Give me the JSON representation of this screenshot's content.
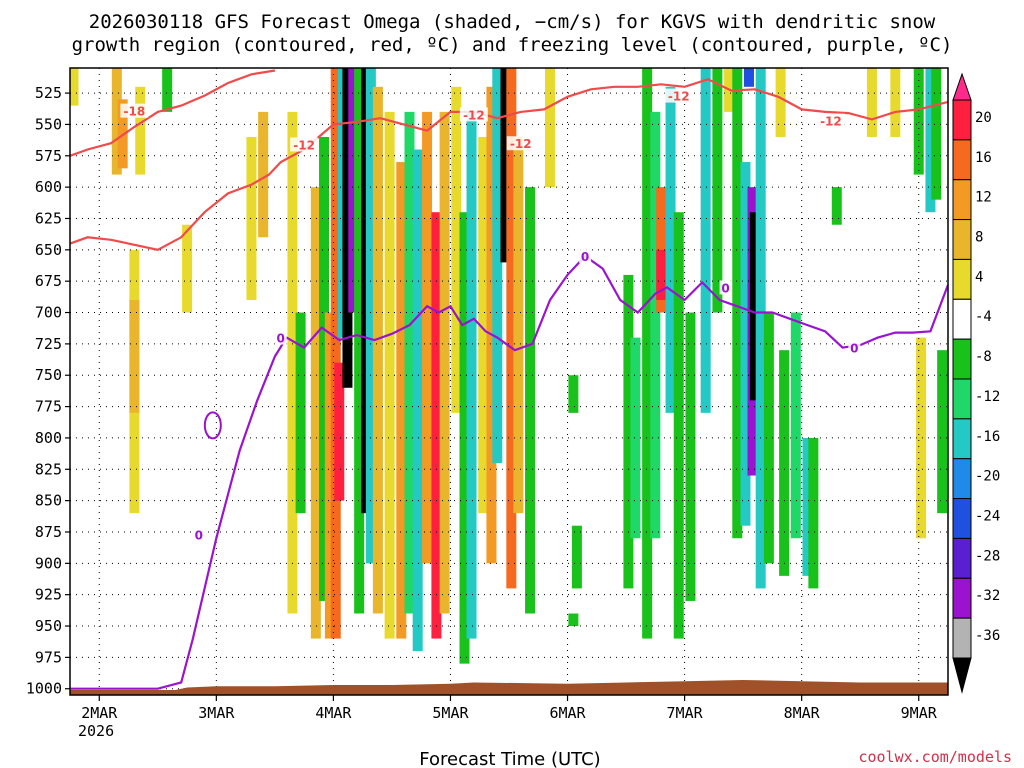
{
  "chart_data": {
    "type": "heatmap",
    "title": [
      "2026030118 GFS Forecast Omega (shaded, −cm/s) for KGVS with dendritic snow",
      "growth region (contoured, red, ºC) and freezing level (contoured, purple, ºC)"
    ],
    "xlabel": "Forecast Time (UTC)",
    "credit": "coolwx.com/models",
    "x_ticks": [
      {
        "label": "2MAR",
        "day": 2
      },
      {
        "label": "3MAR",
        "day": 3
      },
      {
        "label": "4MAR",
        "day": 4
      },
      {
        "label": "5MAR",
        "day": 5
      },
      {
        "label": "6MAR",
        "day": 6
      },
      {
        "label": "7MAR",
        "day": 7
      },
      {
        "label": "8MAR",
        "day": 8
      },
      {
        "label": "9MAR",
        "day": 9
      }
    ],
    "x_year_label": "2026",
    "xlim": [
      1.75,
      9.25
    ],
    "y_ticks": [
      525,
      550,
      575,
      600,
      625,
      650,
      675,
      700,
      725,
      750,
      775,
      800,
      825,
      850,
      875,
      900,
      925,
      950,
      975,
      1000
    ],
    "ylim": [
      505,
      1005
    ],
    "yunits": "hPa",
    "colorbar": {
      "labels": [
        "20",
        "16",
        "12",
        "8",
        "4",
        "-4",
        "-8",
        "-12",
        "-16",
        "-20",
        "-24",
        "-28",
        "-32",
        "-36"
      ],
      "colors": [
        "#ff1f3f",
        "#f56a1e",
        "#f39a25",
        "#e8b52d",
        "#e8d92d",
        "#ffffff",
        "#19c21b",
        "#1fd867",
        "#24c9c4",
        "#1f8ae8",
        "#2050e0",
        "#5a1fd0",
        "#9a14d0",
        "#b3b3b3",
        "#000000"
      ]
    },
    "omega_cells": [
      {
        "x": 1.78,
        "p0": 505,
        "p1": 535,
        "c": "#e8d92d"
      },
      {
        "x": 2.15,
        "p0": 505,
        "p1": 590,
        "c": "#e8b52d"
      },
      {
        "x": 2.2,
        "p0": 530,
        "p1": 585,
        "c": "#f39a25"
      },
      {
        "x": 2.35,
        "p0": 520,
        "p1": 590,
        "c": "#e8d92d"
      },
      {
        "x": 2.58,
        "p0": 505,
        "p1": 540,
        "c": "#19c21b"
      },
      {
        "x": 2.3,
        "p0": 650,
        "p1": 860,
        "c": "#e8d92d"
      },
      {
        "x": 2.3,
        "p0": 690,
        "p1": 780,
        "c": "#e8b52d"
      },
      {
        "x": 2.75,
        "p0": 630,
        "p1": 700,
        "c": "#e8d92d"
      },
      {
        "x": 3.3,
        "p0": 560,
        "p1": 690,
        "c": "#e8d92d"
      },
      {
        "x": 3.4,
        "p0": 540,
        "p1": 640,
        "c": "#e8b52d"
      },
      {
        "x": 3.65,
        "p0": 540,
        "p1": 940,
        "c": "#e8d92d"
      },
      {
        "x": 3.72,
        "p0": 700,
        "p1": 860,
        "c": "#19c21b"
      },
      {
        "x": 3.85,
        "p0": 600,
        "p1": 960,
        "c": "#e8b52d"
      },
      {
        "x": 3.92,
        "p0": 560,
        "p1": 930,
        "c": "#19c21b"
      },
      {
        "x": 3.97,
        "p0": 700,
        "p1": 960,
        "c": "#f39a25"
      },
      {
        "x": 4.02,
        "p0": 505,
        "p1": 960,
        "c": "#f56a1e"
      },
      {
        "x": 4.05,
        "p0": 740,
        "p1": 850,
        "c": "#ff1f3f"
      },
      {
        "x": 4.08,
        "p0": 505,
        "p1": 720,
        "c": "#24c9c4"
      },
      {
        "x": 4.12,
        "p0": 505,
        "p1": 760,
        "c": "#000000"
      },
      {
        "x": 4.17,
        "p0": 505,
        "p1": 700,
        "c": "#9a14d0"
      },
      {
        "x": 4.22,
        "p0": 505,
        "p1": 940,
        "c": "#19c21b"
      },
      {
        "x": 4.28,
        "p0": 505,
        "p1": 860,
        "c": "#000000"
      },
      {
        "x": 4.32,
        "p0": 505,
        "p1": 900,
        "c": "#24c9c4"
      },
      {
        "x": 4.38,
        "p0": 520,
        "p1": 940,
        "c": "#e8b52d"
      },
      {
        "x": 4.48,
        "p0": 540,
        "p1": 960,
        "c": "#e8d92d"
      },
      {
        "x": 4.58,
        "p0": 580,
        "p1": 960,
        "c": "#f39a25"
      },
      {
        "x": 4.65,
        "p0": 540,
        "p1": 940,
        "c": "#1fd867"
      },
      {
        "x": 4.72,
        "p0": 570,
        "p1": 970,
        "c": "#24c9c4"
      },
      {
        "x": 4.8,
        "p0": 540,
        "p1": 900,
        "c": "#f39a25"
      },
      {
        "x": 4.88,
        "p0": 620,
        "p1": 960,
        "c": "#ff1f3f"
      },
      {
        "x": 4.95,
        "p0": 540,
        "p1": 940,
        "c": "#e8b52d"
      },
      {
        "x": 5.05,
        "p0": 520,
        "p1": 780,
        "c": "#e8d92d"
      },
      {
        "x": 5.12,
        "p0": 620,
        "p1": 980,
        "c": "#19c21b"
      },
      {
        "x": 5.18,
        "p0": 540,
        "p1": 960,
        "c": "#24c9c4"
      },
      {
        "x": 5.28,
        "p0": 560,
        "p1": 860,
        "c": "#e8d92d"
      },
      {
        "x": 5.35,
        "p0": 520,
        "p1": 900,
        "c": "#f39a25"
      },
      {
        "x": 5.4,
        "p0": 505,
        "p1": 820,
        "c": "#24c9c4"
      },
      {
        "x": 5.47,
        "p0": 505,
        "p1": 660,
        "c": "#000000"
      },
      {
        "x": 5.52,
        "p0": 505,
        "p1": 920,
        "c": "#f56a1e"
      },
      {
        "x": 5.58,
        "p0": 560,
        "p1": 860,
        "c": "#e8b52d"
      },
      {
        "x": 5.68,
        "p0": 600,
        "p1": 940,
        "c": "#19c21b"
      },
      {
        "x": 5.85,
        "p0": 505,
        "p1": 600,
        "c": "#e8d92d"
      },
      {
        "x": 6.05,
        "p0": 750,
        "p1": 780,
        "c": "#19c21b"
      },
      {
        "x": 6.08,
        "p0": 870,
        "p1": 920,
        "c": "#19c21b"
      },
      {
        "x": 6.05,
        "p0": 940,
        "p1": 950,
        "c": "#19c21b"
      },
      {
        "x": 6.52,
        "p0": 670,
        "p1": 920,
        "c": "#19c21b"
      },
      {
        "x": 6.58,
        "p0": 720,
        "p1": 880,
        "c": "#1fd867"
      },
      {
        "x": 6.68,
        "p0": 505,
        "p1": 960,
        "c": "#19c21b"
      },
      {
        "x": 6.75,
        "p0": 540,
        "p1": 880,
        "c": "#1fd867"
      },
      {
        "x": 6.8,
        "p0": 600,
        "p1": 700,
        "c": "#f56a1e"
      },
      {
        "x": 6.8,
        "p0": 650,
        "p1": 690,
        "c": "#ff1f3f"
      },
      {
        "x": 6.88,
        "p0": 520,
        "p1": 780,
        "c": "#24c9c4"
      },
      {
        "x": 6.95,
        "p0": 620,
        "p1": 960,
        "c": "#19c21b"
      },
      {
        "x": 7.05,
        "p0": 700,
        "p1": 930,
        "c": "#19c21b"
      },
      {
        "x": 7.18,
        "p0": 505,
        "p1": 780,
        "c": "#24c9c4"
      },
      {
        "x": 7.28,
        "p0": 505,
        "p1": 700,
        "c": "#19c21b"
      },
      {
        "x": 7.38,
        "p0": 505,
        "p1": 540,
        "c": "#e8d92d"
      },
      {
        "x": 7.45,
        "p0": 505,
        "p1": 880,
        "c": "#19c21b"
      },
      {
        "x": 7.52,
        "p0": 580,
        "p1": 870,
        "c": "#24c9c4"
      },
      {
        "x": 7.55,
        "p0": 505,
        "p1": 520,
        "c": "#2050e0"
      },
      {
        "x": 7.58,
        "p0": 600,
        "p1": 830,
        "c": "#9a14d0"
      },
      {
        "x": 7.6,
        "p0": 620,
        "p1": 770,
        "c": "#000000"
      },
      {
        "x": 7.65,
        "p0": 505,
        "p1": 920,
        "c": "#24c9c4"
      },
      {
        "x": 7.72,
        "p0": 700,
        "p1": 900,
        "c": "#19c21b"
      },
      {
        "x": 7.82,
        "p0": 505,
        "p1": 560,
        "c": "#e8d92d"
      },
      {
        "x": 7.85,
        "p0": 730,
        "p1": 910,
        "c": "#19c21b"
      },
      {
        "x": 7.95,
        "p0": 700,
        "p1": 880,
        "c": "#1fd867"
      },
      {
        "x": 8.05,
        "p0": 800,
        "p1": 910,
        "c": "#24c9c4"
      },
      {
        "x": 8.1,
        "p0": 800,
        "p1": 920,
        "c": "#19c21b"
      },
      {
        "x": 8.3,
        "p0": 600,
        "p1": 630,
        "c": "#19c21b"
      },
      {
        "x": 8.6,
        "p0": 505,
        "p1": 560,
        "c": "#e8d92d"
      },
      {
        "x": 8.8,
        "p0": 505,
        "p1": 560,
        "c": "#e8d92d"
      },
      {
        "x": 9.0,
        "p0": 505,
        "p1": 590,
        "c": "#19c21b"
      },
      {
        "x": 9.1,
        "p0": 505,
        "p1": 620,
        "c": "#24c9c4"
      },
      {
        "x": 9.15,
        "p0": 505,
        "p1": 610,
        "c": "#19c21b"
      },
      {
        "x": 9.02,
        "p0": 720,
        "p1": 880,
        "c": "#e8d92d"
      },
      {
        "x": 9.2,
        "p0": 730,
        "p1": 860,
        "c": "#19c21b"
      }
    ],
    "freezing_level_0C": {
      "x": [
        1.75,
        1.9,
        2.0,
        2.2,
        2.5,
        2.7,
        2.8,
        2.9,
        3.0,
        3.1,
        3.2,
        3.35,
        3.5,
        3.6,
        3.75,
        3.9,
        4.05,
        4.2,
        4.35,
        4.5,
        4.65,
        4.8,
        4.9,
        5.0,
        5.1,
        5.2,
        5.3,
        5.4,
        5.55,
        5.7,
        5.85,
        6.0,
        6.15,
        6.3,
        6.45,
        6.6,
        6.75,
        6.85,
        7.0,
        7.15,
        7.3,
        7.45,
        7.6,
        7.75,
        7.9,
        8.05,
        8.2,
        8.35,
        8.5,
        8.65,
        8.8,
        8.95,
        9.1,
        9.25
      ],
      "p": [
        1000,
        1000,
        1000,
        1000,
        1000,
        995,
        960,
        920,
        880,
        845,
        810,
        770,
        735,
        720,
        728,
        712,
        722,
        718,
        722,
        717,
        710,
        695,
        700,
        695,
        710,
        705,
        715,
        720,
        730,
        725,
        690,
        670,
        655,
        665,
        690,
        700,
        685,
        680,
        690,
        676,
        690,
        695,
        700,
        700,
        705,
        710,
        715,
        728,
        726,
        720,
        716,
        716,
        715,
        678
      ]
    },
    "dgz_minus12C": {
      "x": [
        1.75,
        1.9,
        2.1,
        2.3,
        2.5,
        2.7,
        2.9,
        3.1,
        3.3,
        3.45,
        3.55,
        3.75,
        4.0,
        4.2,
        4.4,
        4.6,
        4.8,
        5.0,
        5.2,
        5.4,
        5.6,
        5.8,
        6.0,
        6.2,
        6.4,
        6.6,
        6.8,
        7.0,
        7.2,
        7.4,
        7.6,
        7.8,
        8.0,
        8.2,
        8.4,
        8.6,
        8.8,
        9.0,
        9.25
      ],
      "p": [
        645,
        640,
        642,
        646,
        650,
        640,
        620,
        605,
        598,
        590,
        580,
        570,
        550,
        548,
        545,
        550,
        555,
        540,
        540,
        545,
        540,
        538,
        528,
        522,
        520,
        520,
        518,
        520,
        514,
        523,
        522,
        528,
        538,
        540,
        541,
        546,
        540,
        538,
        532
      ]
    },
    "dgz_minus18C": {
      "x": [
        1.75,
        1.9,
        2.1,
        2.3,
        2.5,
        2.7,
        2.9,
        3.1,
        3.3,
        3.5
      ],
      "p": [
        575,
        570,
        565,
        552,
        540,
        535,
        527,
        517,
        510,
        507
      ]
    },
    "contour_labels": [
      {
        "text": "-18",
        "x": 2.3,
        "p": 539,
        "c": "#f04a4a"
      },
      {
        "text": "-12",
        "x": 3.75,
        "p": 566,
        "c": "#f04a4a"
      },
      {
        "text": "-12",
        "x": 5.2,
        "p": 542,
        "c": "#f04a4a"
      },
      {
        "text": "-12",
        "x": 5.6,
        "p": 565,
        "c": "#f04a4a"
      },
      {
        "text": "-12",
        "x": 6.95,
        "p": 527,
        "c": "#f04a4a"
      },
      {
        "text": "-12",
        "x": 8.25,
        "p": 547,
        "c": "#f04a4a"
      },
      {
        "text": "0",
        "x": 3.55,
        "p": 720,
        "c": "#9a14d0"
      },
      {
        "text": "0",
        "x": 2.85,
        "p": 877,
        "c": "#9a14d0"
      },
      {
        "text": "0",
        "x": 6.15,
        "p": 655,
        "c": "#9a14d0"
      },
      {
        "text": "0",
        "x": 7.35,
        "p": 680,
        "c": "#9a14d0"
      },
      {
        "text": "0",
        "x": 8.45,
        "p": 728,
        "c": "#9a14d0"
      }
    ],
    "terrain_color": "#9f522a"
  }
}
